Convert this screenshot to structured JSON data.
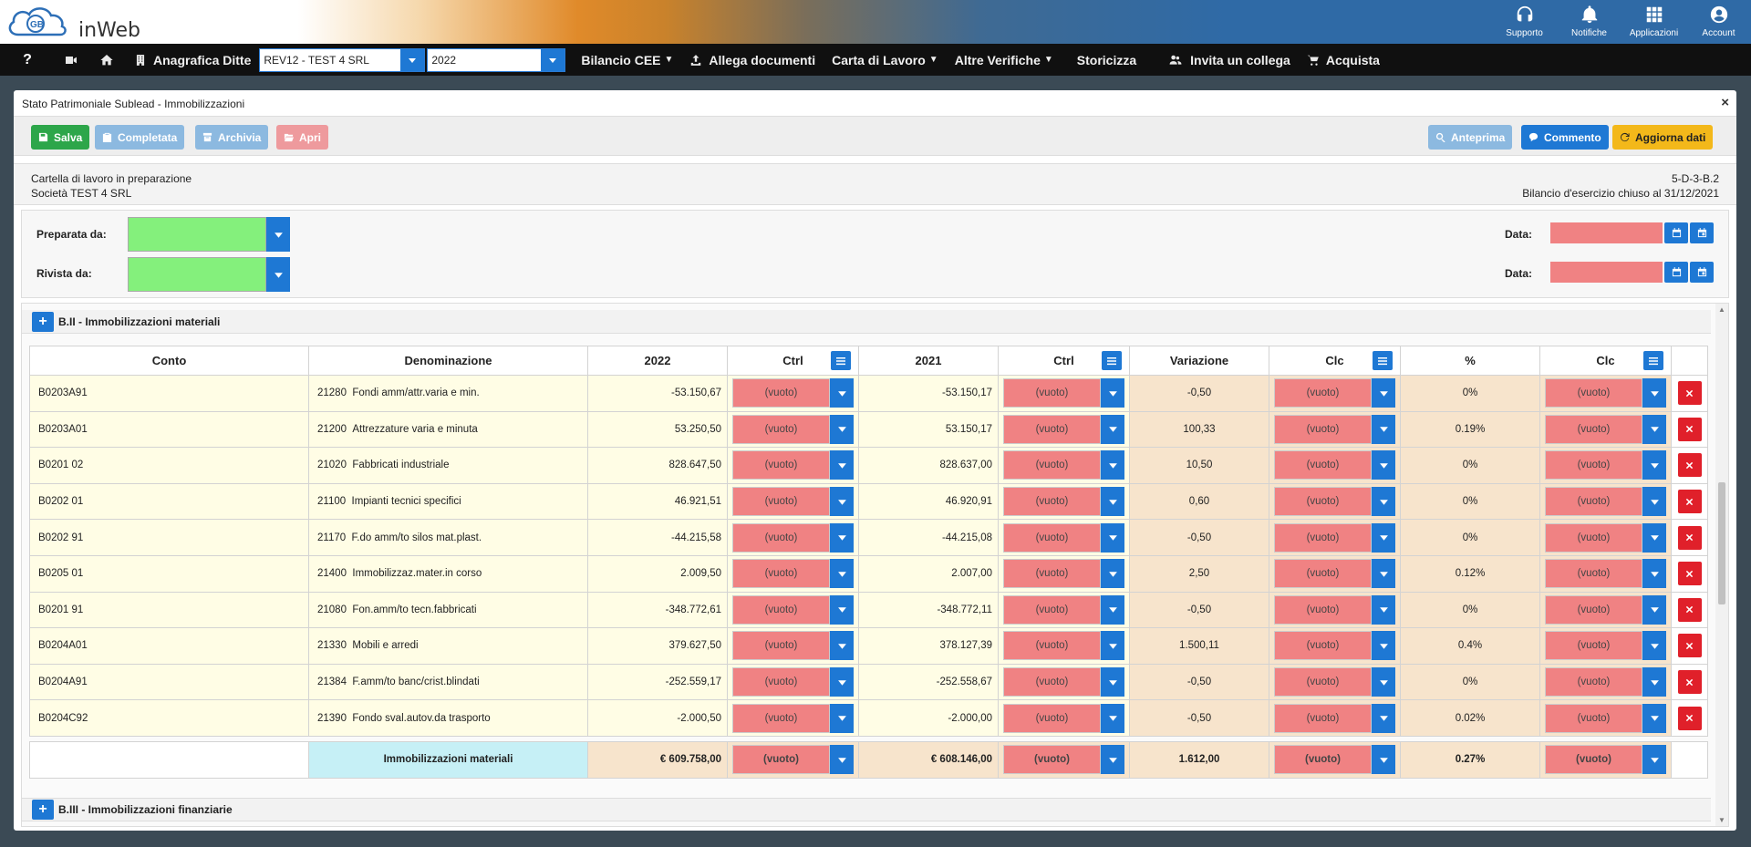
{
  "header": {
    "logo_text": "inWeb",
    "logo_mark": "GB",
    "icons": [
      {
        "name": "headset-icon",
        "label": "Supporto"
      },
      {
        "name": "bell-icon",
        "label": "Notifiche"
      },
      {
        "name": "grid-icon",
        "label": "Applicazioni"
      },
      {
        "name": "user-icon",
        "label": "Account"
      }
    ]
  },
  "nav": {
    "help": "?",
    "anagrafica": "Anagrafica Ditte",
    "company_value": "REV12 - TEST 4 SRL",
    "year_value": "2022",
    "bilancio": "Bilancio CEE",
    "allega": "Allega documenti",
    "carta": "Carta di Lavoro",
    "altre": "Altre Verifiche",
    "storicizza": "Storicizza",
    "invita": "Invita un collega",
    "acquista": "Acquista"
  },
  "panel": {
    "title": "Stato Patrimoniale Sublead - Immobilizzazioni",
    "close": "×"
  },
  "toolbar": {
    "salva": "Salva",
    "completata": "Completata",
    "archivia": "Archivia",
    "apri": "Apri",
    "anteprima": "Anteprima",
    "commento": "Commento",
    "aggiorna": "Aggiorna dati"
  },
  "info": {
    "status": "Cartella di lavoro in preparazione",
    "company": "Società TEST 4 SRL",
    "code": "5-D-3-B.2",
    "closing": "Bilancio d'esercizio chiuso al 31/12/2021"
  },
  "prep": {
    "preparata_label": "Preparata da:",
    "rivista_label": "Rivista da:",
    "data_label": "Data:"
  },
  "section": {
    "title": "B.II - Immobilizzazioni materiali",
    "next_title": "B.III - Immobilizzazioni finanziarie",
    "columns": [
      "Conto",
      "Denominazione",
      "2022",
      "Ctrl",
      "2021",
      "Ctrl",
      "Variazione",
      "Clc",
      "%",
      "Clc"
    ],
    "empty_option": "(vuoto)",
    "rows": [
      {
        "conto": "B0203A91",
        "codice": "21280",
        "denom": "Fondi amm/attr.varia e min.",
        "y2022": "-53.150,67",
        "y2021": "-53.150,17",
        "variazione": "-0,50",
        "pct": "0%"
      },
      {
        "conto": "B0203A01",
        "codice": "21200",
        "denom": "Attrezzature varia e minuta",
        "y2022": "53.250,50",
        "y2021": "53.150,17",
        "variazione": "100,33",
        "pct": "0.19%"
      },
      {
        "conto": "B0201 02",
        "codice": "21020",
        "denom": "Fabbricati industriale",
        "y2022": "828.647,50",
        "y2021": "828.637,00",
        "variazione": "10,50",
        "pct": "0%"
      },
      {
        "conto": "B0202 01",
        "codice": "21100",
        "denom": "Impianti tecnici specifici",
        "y2022": "46.921,51",
        "y2021": "46.920,91",
        "variazione": "0,60",
        "pct": "0%"
      },
      {
        "conto": "B0202 91",
        "codice": "21170",
        "denom": "F.do amm/to silos mat.plast.",
        "y2022": "-44.215,58",
        "y2021": "-44.215,08",
        "variazione": "-0,50",
        "pct": "0%"
      },
      {
        "conto": "B0205 01",
        "codice": "21400",
        "denom": "Immobilizzaz.mater.in corso",
        "y2022": "2.009,50",
        "y2021": "2.007,00",
        "variazione": "2,50",
        "pct": "0.12%"
      },
      {
        "conto": "B0201 91",
        "codice": "21080",
        "denom": "Fon.amm/to tecn.fabbricati",
        "y2022": "-348.772,61",
        "y2021": "-348.772,11",
        "variazione": "-0,50",
        "pct": "0%"
      },
      {
        "conto": "B0204A01",
        "codice": "21330",
        "denom": "Mobili e arredi",
        "y2022": "379.627,50",
        "y2021": "378.127,39",
        "variazione": "1.500,11",
        "pct": "0.4%"
      },
      {
        "conto": "B0204A91",
        "codice": "21384",
        "denom": "F.amm/to banc/crist.blindati",
        "y2022": "-252.559,17",
        "y2021": "-252.558,67",
        "variazione": "-0,50",
        "pct": "0%"
      },
      {
        "conto": "B0204C92",
        "codice": "21390",
        "denom": "Fondo sval.autov.da trasporto",
        "y2022": "-2.000,50",
        "y2021": "-2.000,00",
        "variazione": "-0,50",
        "pct": "0.02%"
      }
    ],
    "total": {
      "label": "Immobilizzazioni materiali",
      "y2022": "€ 609.758,00",
      "y2021": "€ 608.146,00",
      "variazione": "1.612,00",
      "pct": "0.27%"
    }
  }
}
